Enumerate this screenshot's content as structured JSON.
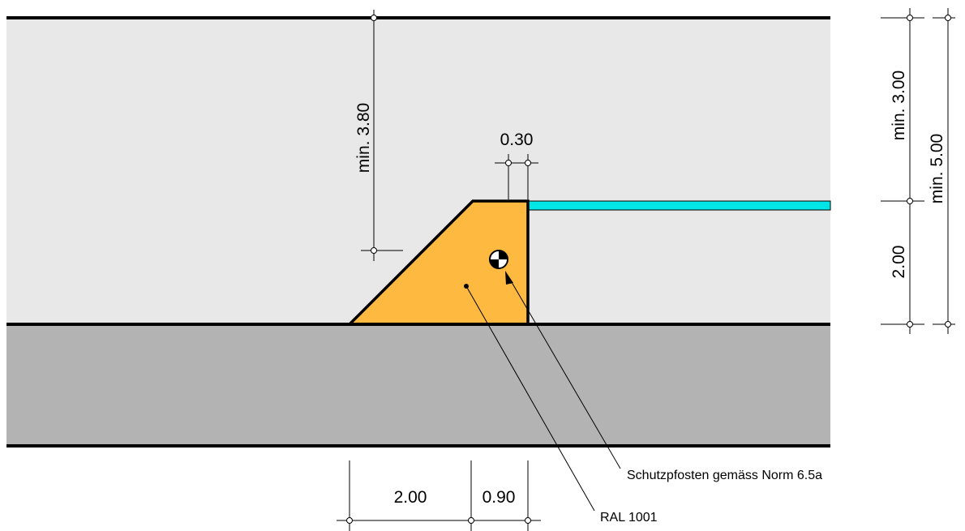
{
  "colors": {
    "lane": "#e8e8e8",
    "shoulder": "#b3b3b3",
    "island": "#fdb940",
    "edge_line": "#00e5e5"
  },
  "dimensions": {
    "min_380": "min. 3.80",
    "width_030": "0.30",
    "min_300": "min. 3.00",
    "min_500": "min. 5.00",
    "height_200": "2.00",
    "length_200": "2.00",
    "length_090": "0.90"
  },
  "labels": {
    "post": "Schutzpfosten gemäss Norm 6.5a",
    "color": "RAL 1001"
  },
  "icons": {
    "post_marker": "bollard-symbol"
  }
}
